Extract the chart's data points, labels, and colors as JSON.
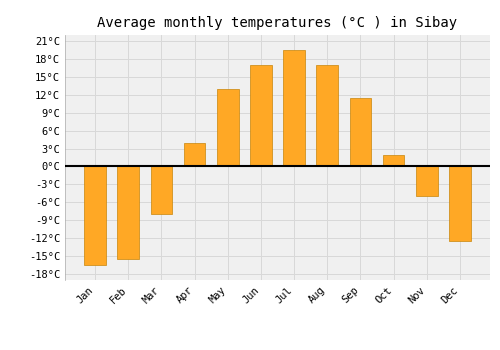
{
  "title": "Average monthly temperatures (°C ) in Sibay",
  "months": [
    "Jan",
    "Feb",
    "Mar",
    "Apr",
    "May",
    "Jun",
    "Jul",
    "Aug",
    "Sep",
    "Oct",
    "Nov",
    "Dec"
  ],
  "values": [
    -16.5,
    -15.5,
    -8.0,
    4.0,
    13.0,
    17.0,
    19.5,
    17.0,
    11.5,
    2.0,
    -5.0,
    -12.5
  ],
  "bar_color": "#FFA825",
  "ylim_min": -19,
  "ylim_max": 22,
  "yticks": [
    -18,
    -15,
    -12,
    -9,
    -6,
    -3,
    0,
    3,
    6,
    9,
    12,
    15,
    18,
    21
  ],
  "ytick_labels": [
    "-18°C",
    "-15°C",
    "-12°C",
    "-9°C",
    "-6°C",
    "-3°C",
    "0°C",
    "3°C",
    "6°C",
    "9°C",
    "12°C",
    "15°C",
    "18°C",
    "21°C"
  ],
  "background_color": "#ffffff",
  "plot_bg_color": "#f0f0f0",
  "grid_color": "#d8d8d8",
  "zero_line_color": "#000000",
  "title_fontsize": 10,
  "tick_fontsize": 7.5,
  "bar_width": 0.65
}
